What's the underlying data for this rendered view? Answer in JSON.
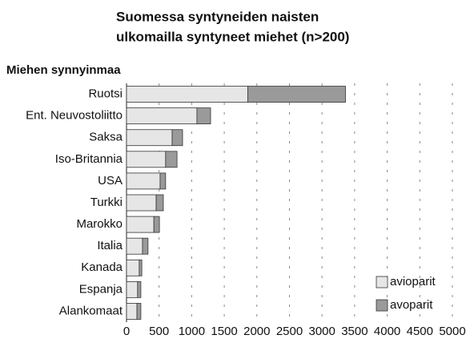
{
  "chart_data": {
    "type": "stacked_barh",
    "title": [
      "Suomessa syntyneiden naisten",
      "ulkomailla syntyneet miehet (n>200)"
    ],
    "y_label": "Miehen synnyinmaa",
    "categories": [
      "Ruotsi",
      "Ent. Neuvostoliitto",
      "Saksa",
      "Iso-Britannia",
      "USA",
      "Turkki",
      "Marokko",
      "Italia",
      "Kanada",
      "Espanja",
      "Alankomaat"
    ],
    "series": [
      {
        "name": "avioparit",
        "color": "#e6e6e6",
        "values": [
          1860,
          1080,
          700,
          600,
          515,
          455,
          420,
          245,
          195,
          170,
          160
        ]
      },
      {
        "name": "avoparit",
        "color": "#9a9a9a",
        "values": [
          1500,
          210,
          160,
          175,
          85,
          110,
          85,
          85,
          40,
          50,
          60
        ]
      }
    ],
    "xlim": [
      0,
      5000
    ],
    "xticks": [
      0,
      500,
      1000,
      1500,
      2000,
      2500,
      3000,
      3500,
      4000,
      4500,
      5000
    ],
    "grid": true,
    "legend": "lower right"
  }
}
